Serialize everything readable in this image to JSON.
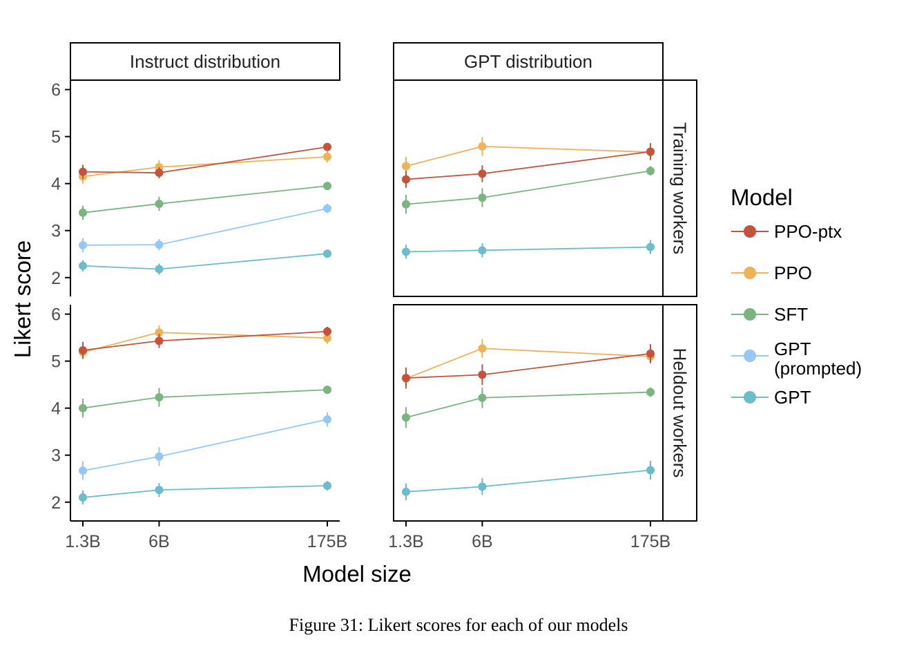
{
  "figure": {
    "caption": "Figure 31: Likert scores for each of our models"
  },
  "chart_data": {
    "type": "line",
    "xlabel": "Model size",
    "ylabel": "Likert score",
    "x_categories": [
      "1.3B",
      "6B",
      "175B"
    ],
    "x_values": [
      1.3,
      6,
      175
    ],
    "x_scale": "log",
    "column_facets": [
      "Instruct distribution",
      "GPT distribution"
    ],
    "row_facets": [
      "Training workers",
      "Heldout workers"
    ],
    "yticks": [
      2,
      3,
      4,
      5,
      6
    ],
    "ylim": [
      1.6,
      6.2
    ],
    "grid": false,
    "legend": {
      "title": "Model",
      "position": "right",
      "entries": [
        {
          "label": "PPO-ptx",
          "color": "#c5523b"
        },
        {
          "label": "PPO",
          "color": "#efb25a"
        },
        {
          "label": "SFT",
          "color": "#7ab57f"
        },
        {
          "label": "GPT\n(prompted)",
          "color": "#96c8f5"
        },
        {
          "label": "GPT",
          "color": "#6cbdcc"
        }
      ]
    },
    "panels": [
      {
        "col": "Instruct distribution",
        "row": "Training workers",
        "series": [
          {
            "name": "PPO-ptx",
            "y": [
              4.25,
              4.23,
              4.78
            ],
            "err": [
              0.15,
              0.12,
              0.08
            ]
          },
          {
            "name": "PPO",
            "y": [
              4.15,
              4.35,
              4.57
            ],
            "err": [
              0.15,
              0.15,
              0.12
            ]
          },
          {
            "name": "SFT",
            "y": [
              3.38,
              3.57,
              3.95
            ],
            "err": [
              0.15,
              0.15,
              0.07
            ]
          },
          {
            "name": "GPT\n(prompted)",
            "y": [
              2.69,
              2.7,
              3.47
            ],
            "err": [
              0.15,
              0.12,
              0.1
            ]
          },
          {
            "name": "GPT",
            "y": [
              2.25,
              2.18,
              2.51
            ],
            "err": [
              0.12,
              0.12,
              0.07
            ]
          }
        ]
      },
      {
        "col": "GPT distribution",
        "row": "Training workers",
        "series": [
          {
            "name": "PPO-ptx",
            "y": [
              4.09,
              4.21,
              4.68
            ],
            "err": [
              0.18,
              0.18,
              0.18
            ]
          },
          {
            "name": "PPO",
            "y": [
              4.37,
              4.79,
              4.67
            ],
            "err": [
              0.2,
              0.2,
              0.15
            ]
          },
          {
            "name": "SFT",
            "y": [
              3.56,
              3.7,
              4.27
            ],
            "err": [
              0.2,
              0.2,
              0.1
            ]
          },
          {
            "name": "GPT",
            "y": [
              2.55,
              2.58,
              2.65
            ],
            "err": [
              0.15,
              0.15,
              0.15
            ]
          }
        ]
      },
      {
        "col": "Instruct distribution",
        "row": "Heldout workers",
        "series": [
          {
            "name": "PPO-ptx",
            "y": [
              5.23,
              5.43,
              5.63
            ],
            "err": [
              0.18,
              0.15,
              0.1
            ]
          },
          {
            "name": "PPO",
            "y": [
              5.19,
              5.61,
              5.49
            ],
            "err": [
              0.15,
              0.15,
              0.12
            ]
          },
          {
            "name": "SFT",
            "y": [
              4.0,
              4.23,
              4.39
            ],
            "err": [
              0.2,
              0.2,
              0.08
            ]
          },
          {
            "name": "GPT\n(prompted)",
            "y": [
              2.67,
              2.97,
              3.76
            ],
            "err": [
              0.2,
              0.2,
              0.15
            ]
          },
          {
            "name": "GPT",
            "y": [
              2.1,
              2.26,
              2.35
            ],
            "err": [
              0.15,
              0.15,
              0.1
            ]
          }
        ]
      },
      {
        "col": "GPT distribution",
        "row": "Heldout workers",
        "series": [
          {
            "name": "PPO-ptx",
            "y": [
              4.64,
              4.71,
              5.16
            ],
            "err": [
              0.22,
              0.22,
              0.2
            ]
          },
          {
            "name": "PPO",
            "y": [
              4.63,
              5.27,
              5.1
            ],
            "err": [
              0.22,
              0.2,
              0.15
            ]
          },
          {
            "name": "SFT",
            "y": [
              3.8,
              4.22,
              4.34
            ],
            "err": [
              0.22,
              0.22,
              0.1
            ]
          },
          {
            "name": "GPT",
            "y": [
              2.22,
              2.33,
              2.68
            ],
            "err": [
              0.18,
              0.18,
              0.2
            ]
          }
        ]
      }
    ]
  }
}
